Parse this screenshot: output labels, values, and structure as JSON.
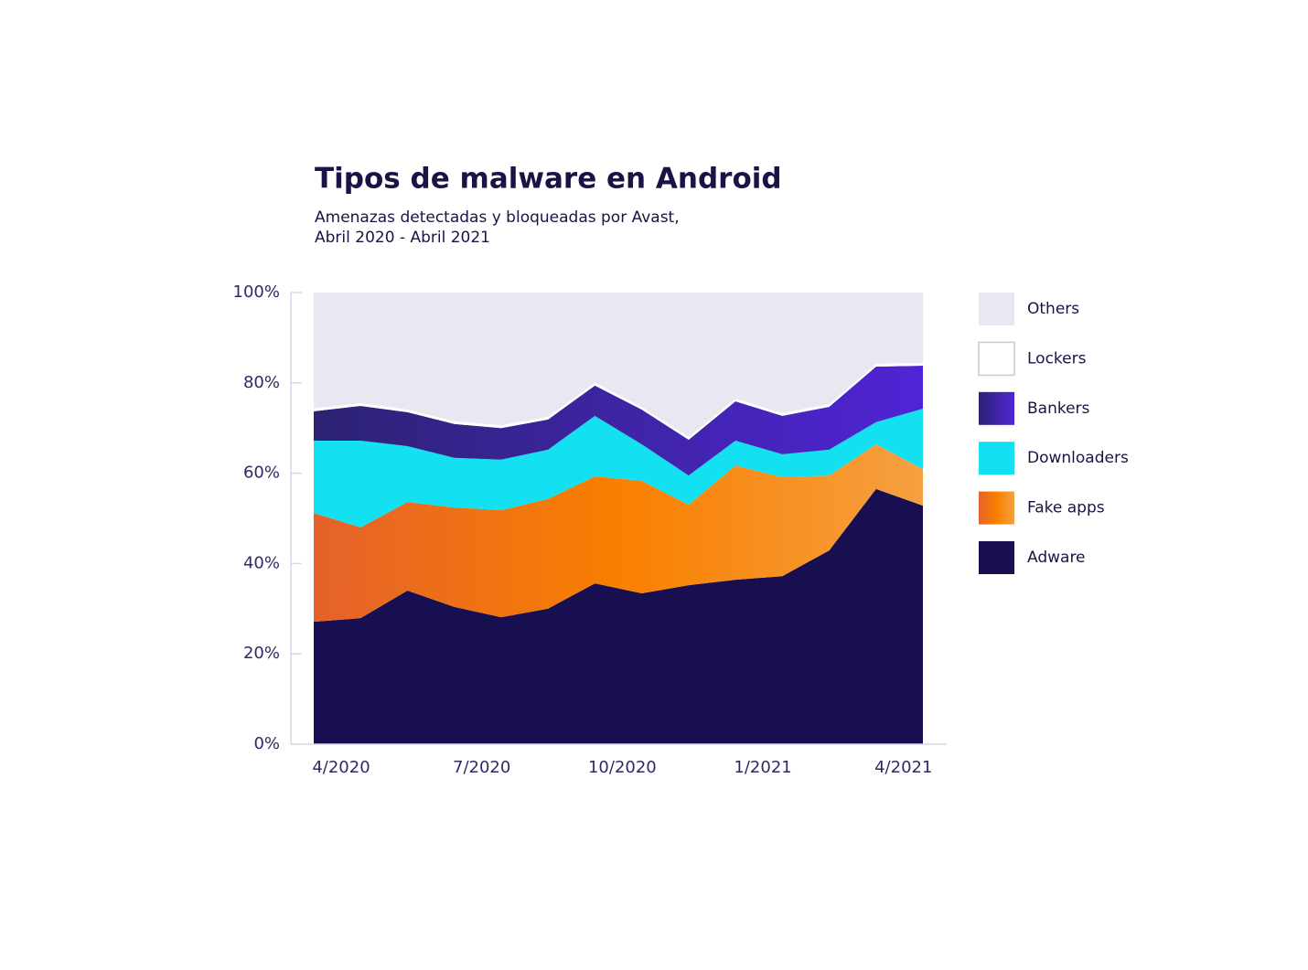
{
  "chart_data": {
    "type": "stacked_area",
    "title": "Tipos de malware en Android",
    "subtitle": [
      "Amenazas detectadas y bloqueadas por Avast,",
      "Abril 2020 - Abril 2021"
    ],
    "categories": [
      "4/2020",
      null,
      null,
      "7/2020",
      null,
      null,
      "10/2020",
      null,
      null,
      "1/2021",
      null,
      null,
      "4/2021",
      null
    ],
    "ylim": [
      0,
      100
    ],
    "yticks": [
      {
        "value": 0,
        "label": "0%"
      },
      {
        "value": 20,
        "label": "20%"
      },
      {
        "value": 40,
        "label": "40%"
      },
      {
        "value": 60,
        "label": "60%"
      },
      {
        "value": 80,
        "label": "80%"
      },
      {
        "value": 100,
        "label": "100%"
      }
    ],
    "legend": "right",
    "series": [
      {
        "name": "Adware",
        "color": "#170f4f",
        "values": [
          27.1,
          27.9,
          34,
          30.4,
          28.1,
          30,
          35.6,
          33.4,
          35.2,
          36.4,
          37.2,
          42.9,
          56.5,
          52.8
        ]
      },
      {
        "name": "Fake apps",
        "color": "#f97f00",
        "gradient": [
          "#e4622a",
          "#f97f00",
          "#f6a040"
        ],
        "values": [
          24.1,
          20.1,
          19.6,
          22,
          23.7,
          24.3,
          23.7,
          24.9,
          17.8,
          25.3,
          21.9,
          16.6,
          9.9,
          8.1
        ]
      },
      {
        "name": "Downloaders",
        "color": "#13e0f0",
        "values": [
          16,
          19.2,
          12.4,
          11,
          11.2,
          10.9,
          13.4,
          8.1,
          6.5,
          5.5,
          5.1,
          5.7,
          4.9,
          13.4
        ]
      },
      {
        "name": "Bankers",
        "color": "#3a2a9a",
        "gradient": [
          "#2c2373",
          "#5024d6"
        ],
        "values": [
          6.5,
          7.7,
          7.5,
          7.5,
          7,
          6.7,
          6.7,
          7.7,
          7.9,
          8.7,
          8.5,
          9.5,
          12.3,
          9.5
        ]
      },
      {
        "name": "Lockers",
        "color": "#ffffff",
        "values": [
          0.6,
          0.6,
          0.6,
          0.6,
          0.6,
          0.6,
          0.6,
          0.6,
          0.6,
          0.6,
          0.6,
          0.6,
          0.6,
          0.6
        ]
      },
      {
        "name": "Others",
        "color": "#e9e8f2",
        "values": [
          25.7,
          24.5,
          25.9,
          28.5,
          29.4,
          27.5,
          20,
          25.3,
          32,
          23.5,
          26.7,
          24.7,
          15.8,
          15.6
        ]
      }
    ]
  }
}
